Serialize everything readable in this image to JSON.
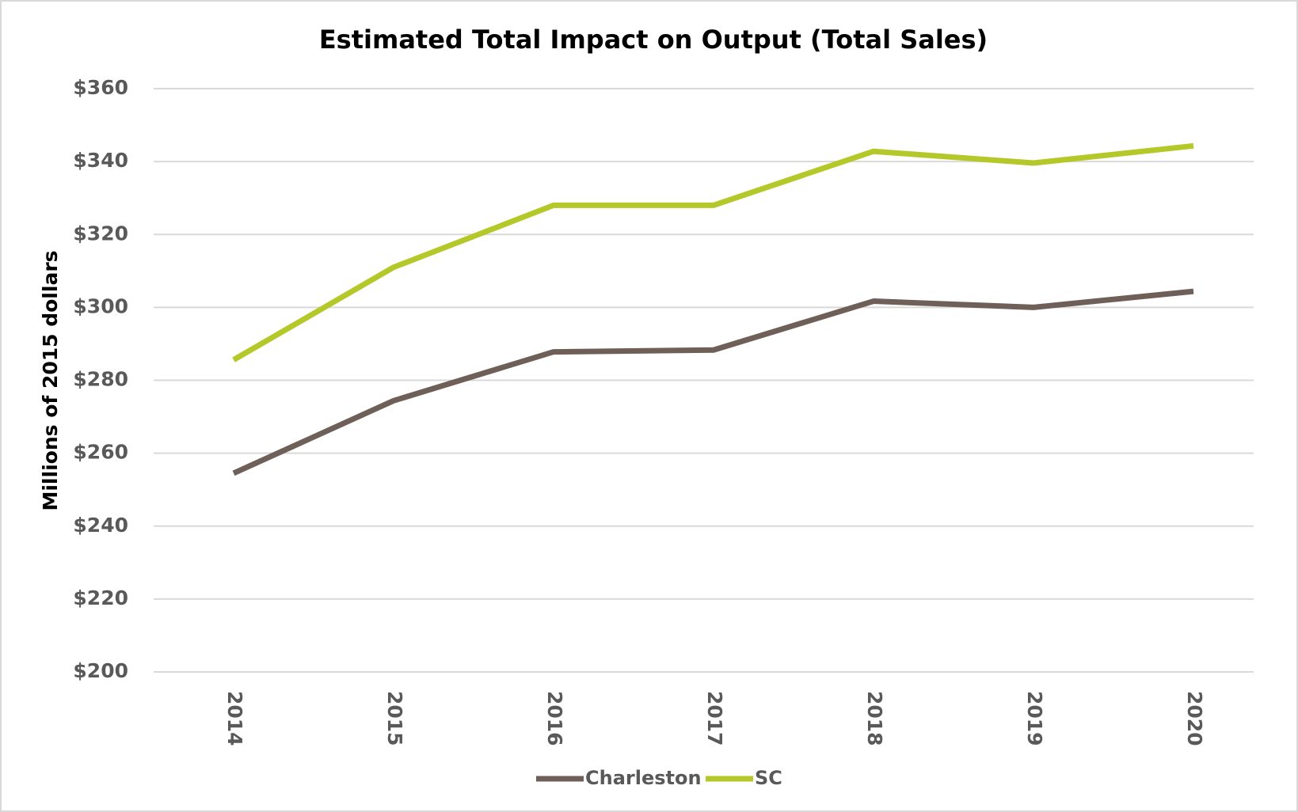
{
  "chart_data": {
    "type": "line",
    "title": "Estimated Total Impact on Output (Total Sales)",
    "y_label": "Millions of 2015 dollars",
    "categories": [
      "2014",
      "2015",
      "2016",
      "2017",
      "2018",
      "2019",
      "2020"
    ],
    "series": [
      {
        "name": "Charleston",
        "color": "#6e6058",
        "values": [
          254.5,
          274.4,
          287.8,
          288.3,
          301.7,
          300,
          304.4
        ]
      },
      {
        "name": "SC",
        "color": "#b5c82a",
        "values": [
          285.6,
          311,
          328,
          328,
          342.8,
          339.6,
          344.3
        ]
      }
    ],
    "ylim": [
      200,
      360
    ],
    "yticks": [
      {
        "value": 200,
        "label": "$200"
      },
      {
        "value": 220,
        "label": "$220"
      },
      {
        "value": 240,
        "label": "$240"
      },
      {
        "value": 260,
        "label": "$260"
      },
      {
        "value": 280,
        "label": "$280"
      },
      {
        "value": 300,
        "label": "$300"
      },
      {
        "value": 320,
        "label": "$320"
      },
      {
        "value": 340,
        "label": "$340"
      },
      {
        "value": 360,
        "label": "$360"
      }
    ],
    "grid": true,
    "legend": "bottom"
  }
}
